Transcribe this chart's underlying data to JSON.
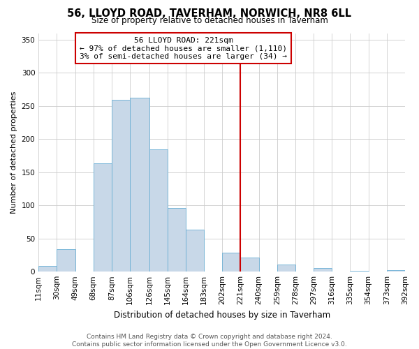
{
  "title": "56, LLOYD ROAD, TAVERHAM, NORWICH, NR8 6LL",
  "subtitle": "Size of property relative to detached houses in Taverham",
  "xlabel": "Distribution of detached houses by size in Taverham",
  "ylabel": "Number of detached properties",
  "bin_edges": [
    11,
    30,
    49,
    68,
    87,
    106,
    126,
    145,
    164,
    183,
    202,
    221,
    240,
    259,
    278,
    297,
    316,
    335,
    354,
    373,
    392
  ],
  "bin_labels": [
    "11sqm",
    "30sqm",
    "49sqm",
    "68sqm",
    "87sqm",
    "106sqm",
    "126sqm",
    "145sqm",
    "164sqm",
    "183sqm",
    "202sqm",
    "221sqm",
    "240sqm",
    "259sqm",
    "278sqm",
    "297sqm",
    "316sqm",
    "335sqm",
    "354sqm",
    "373sqm",
    "392sqm"
  ],
  "counts": [
    9,
    34,
    0,
    163,
    259,
    263,
    185,
    96,
    63,
    0,
    29,
    21,
    0,
    11,
    0,
    5,
    0,
    1,
    0,
    2
  ],
  "bar_color": "#c8d8e8",
  "bar_edge_color": "#6aafd4",
  "vline_x": 221,
  "vline_color": "#cc0000",
  "annotation_line1": "56 LLOYD ROAD: 221sqm",
  "annotation_line2": "← 97% of detached houses are smaller (1,110)",
  "annotation_line3": "3% of semi-detached houses are larger (34) →",
  "annotation_box_color": "#ffffff",
  "annotation_box_edge": "#cc0000",
  "ylim": [
    0,
    360
  ],
  "yticks": [
    0,
    50,
    100,
    150,
    200,
    250,
    300,
    350
  ],
  "footer_line1": "Contains HM Land Registry data © Crown copyright and database right 2024.",
  "footer_line2": "Contains public sector information licensed under the Open Government Licence v3.0.",
  "background_color": "#ffffff",
  "grid_color": "#cccccc",
  "title_fontsize": 10.5,
  "subtitle_fontsize": 8.5,
  "xlabel_fontsize": 8.5,
  "ylabel_fontsize": 8,
  "tick_fontsize": 7.5,
  "annotation_fontsize": 8,
  "footer_fontsize": 6.5
}
